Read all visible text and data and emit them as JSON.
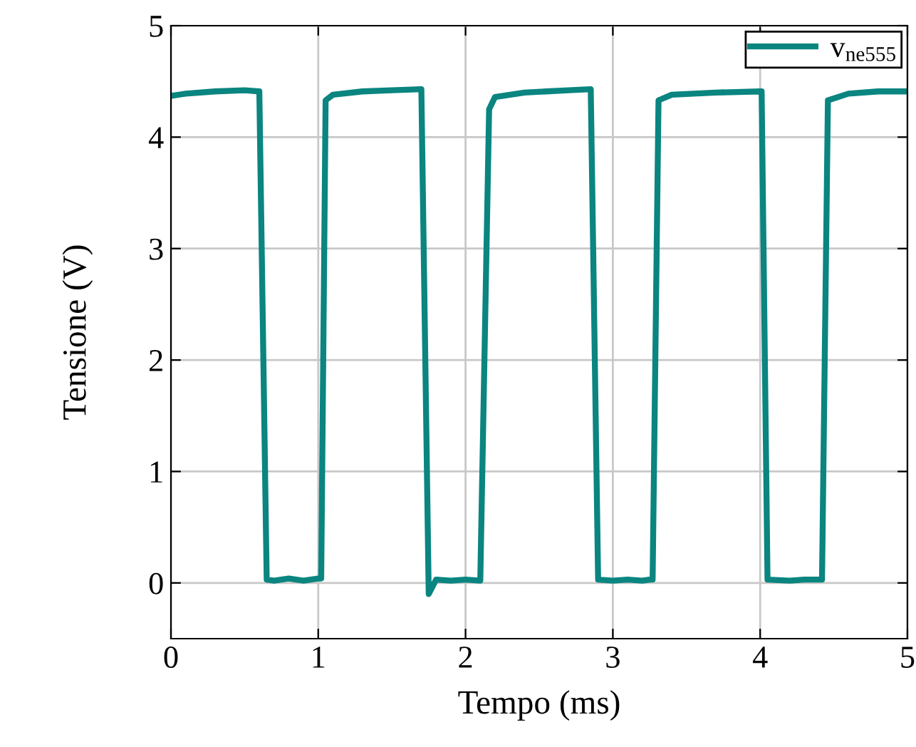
{
  "chart_data": {
    "type": "line",
    "xlabel": "Tempo (ms)",
    "ylabel": "Tensione (V)",
    "xlim": [
      0,
      5
    ],
    "ylim": [
      -0.5,
      5
    ],
    "xticks": [
      0,
      1,
      2,
      3,
      4,
      5
    ],
    "yticks": [
      0,
      1,
      2,
      3,
      4,
      5
    ],
    "grid": true,
    "legend": "top right",
    "marker": "none",
    "line_style": "solid",
    "series": [
      {
        "name": "v$_{ne555}$",
        "color": "#0a8580",
        "x": [
          0,
          0.1,
          0.3,
          0.5,
          0.6,
          0.65,
          0.7,
          0.8,
          0.9,
          1.0,
          1.02,
          1.05,
          1.1,
          1.3,
          1.5,
          1.7,
          1.75,
          1.8,
          1.9,
          2.0,
          2.1,
          2.16,
          2.2,
          2.4,
          2.7,
          2.85,
          2.9,
          3.0,
          3.1,
          3.2,
          3.25,
          3.27,
          3.31,
          3.4,
          3.7,
          4.0,
          4.01,
          4.05,
          4.2,
          4.3,
          4.4,
          4.42,
          4.46,
          4.6,
          4.8,
          5.0
        ],
        "values": [
          4.37,
          4.39,
          4.41,
          4.42,
          4.41,
          0.03,
          0.02,
          0.04,
          0.02,
          0.04,
          0.04,
          4.33,
          4.38,
          4.41,
          4.42,
          4.43,
          -0.1,
          0.03,
          0.02,
          0.03,
          0.02,
          4.25,
          4.36,
          4.4,
          4.42,
          4.43,
          0.03,
          0.02,
          0.03,
          0.02,
          0.03,
          0.03,
          4.33,
          4.38,
          4.4,
          4.41,
          4.41,
          0.03,
          0.02,
          0.03,
          0.03,
          0.03,
          4.33,
          4.39,
          4.41,
          4.41
        ]
      }
    ]
  }
}
